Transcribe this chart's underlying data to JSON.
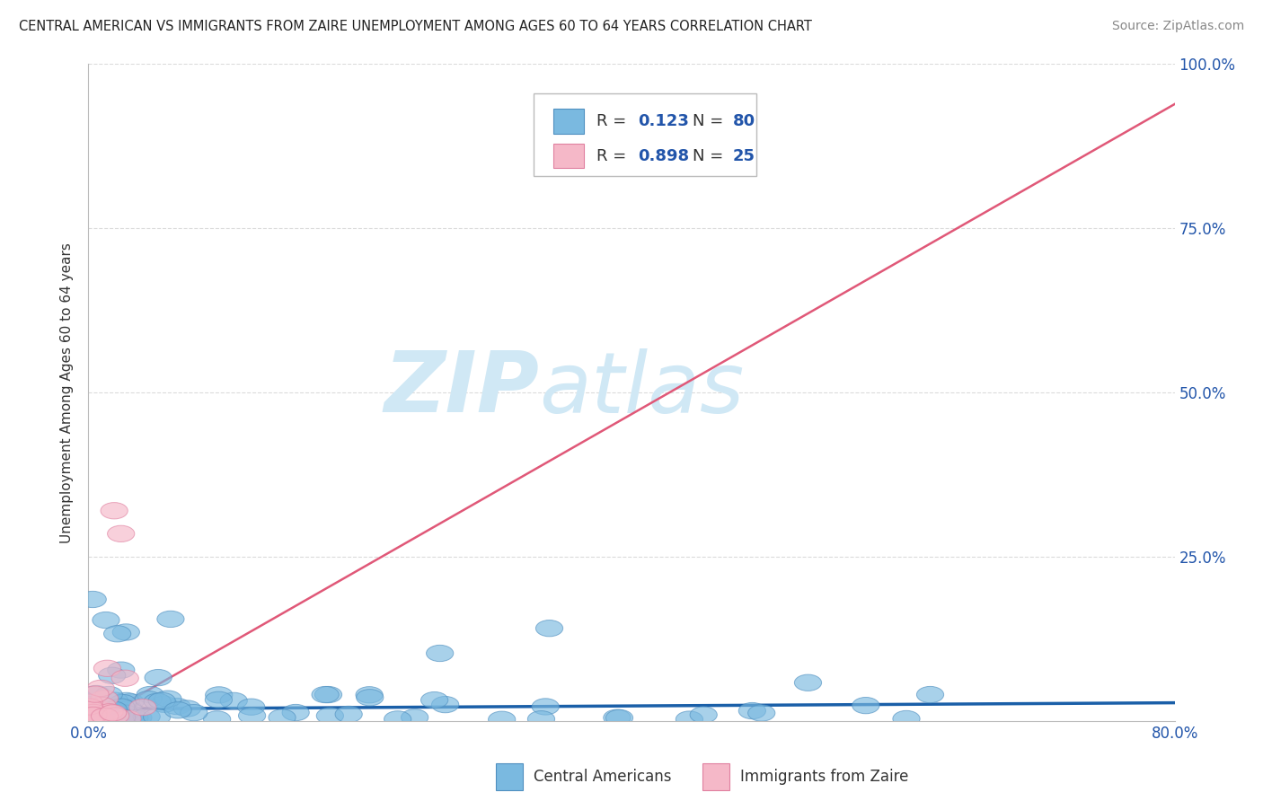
{
  "title": "CENTRAL AMERICAN VS IMMIGRANTS FROM ZAIRE UNEMPLOYMENT AMONG AGES 60 TO 64 YEARS CORRELATION CHART",
  "source": "Source: ZipAtlas.com",
  "ylabel": "Unemployment Among Ages 60 to 64 years",
  "xlim": [
    0.0,
    0.8
  ],
  "ylim": [
    0.0,
    1.0
  ],
  "xticks": [
    0.0,
    0.1,
    0.2,
    0.3,
    0.4,
    0.5,
    0.6,
    0.7,
    0.8
  ],
  "yticks": [
    0.0,
    0.25,
    0.5,
    0.75,
    1.0
  ],
  "blue_color": "#7ab9e0",
  "blue_edge": "#5090c0",
  "blue_line": "#1a5fa8",
  "pink_color": "#f5b8c8",
  "pink_edge": "#e080a0",
  "pink_line": "#e05878",
  "watermark_zip": "ZIP",
  "watermark_atlas": "atlas",
  "watermark_color": "#d0e8f5",
  "legend_label1": "Central Americans",
  "legend_label2": "Immigrants from Zaire",
  "R1": 0.123,
  "N1": 80,
  "R2": 0.898,
  "N2": 25,
  "background": "#ffffff",
  "grid_color": "#cccccc",
  "title_color": "#222222",
  "source_color": "#888888",
  "axis_label_color": "#2255aa",
  "text_color": "#333333",
  "blue_line_slope": 0.012,
  "blue_line_intercept": 0.018,
  "pink_line_slope": 1.18,
  "pink_line_intercept": -0.005
}
